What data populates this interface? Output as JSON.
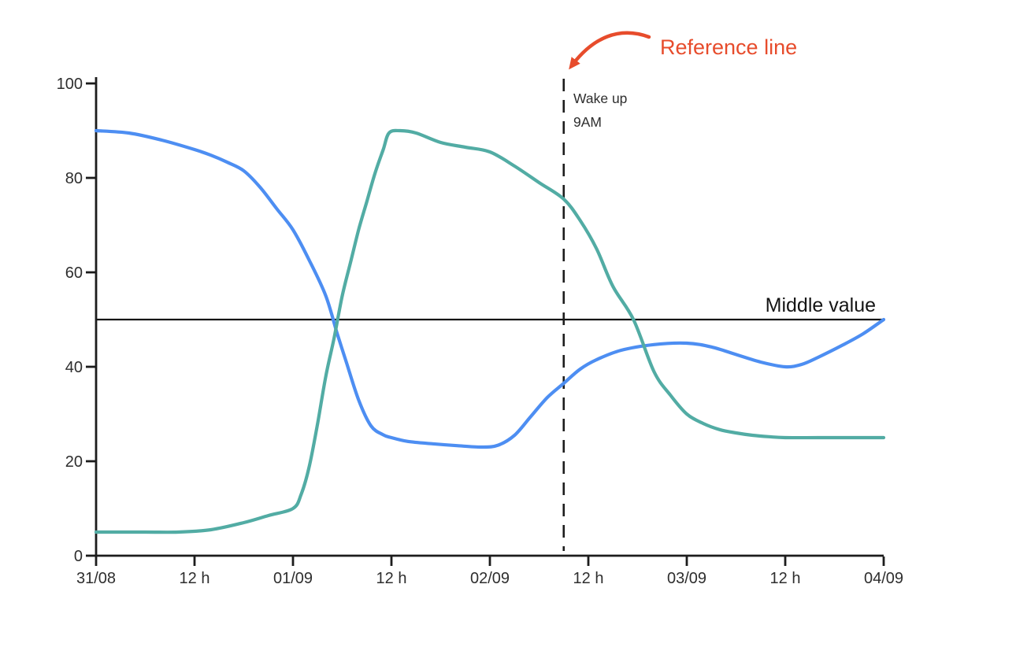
{
  "figure": {
    "background": "#ffffff"
  },
  "chart_data": {
    "type": "line",
    "title": "",
    "xlabel": "",
    "ylabel": "",
    "grid": false,
    "legend": false,
    "axis_color": "#1c1c1c",
    "tick_text_color": "#2e2e2e",
    "x_axis": {
      "unit": "datetime-hours-from-31/08-00:00",
      "range_hours": [
        0,
        96
      ],
      "tick_hours": [
        0,
        12,
        24,
        36,
        48,
        60,
        72,
        84,
        96
      ],
      "tick_labels": [
        "31/08",
        "12 h",
        "01/09",
        "12 h",
        "02/09",
        "12 h",
        "03/09",
        "12 h",
        "04/09"
      ]
    },
    "y_axis": {
      "range": [
        0,
        100
      ],
      "ticks": [
        0,
        20,
        40,
        60,
        80,
        100
      ]
    },
    "series": [
      {
        "name": "blue-series",
        "color": "#4D8EF2",
        "points_hour_value": [
          [
            0,
            90
          ],
          [
            4,
            89.5
          ],
          [
            8,
            88
          ],
          [
            12,
            86
          ],
          [
            14,
            84.8
          ],
          [
            16,
            83.3
          ],
          [
            18,
            81.5
          ],
          [
            20,
            78
          ],
          [
            22,
            73.5
          ],
          [
            24,
            69
          ],
          [
            26,
            62.5
          ],
          [
            28,
            55
          ],
          [
            29.4,
            47
          ],
          [
            30.5,
            41
          ],
          [
            32,
            33
          ],
          [
            33.5,
            27.5
          ],
          [
            35,
            25.6
          ],
          [
            36,
            25
          ],
          [
            38,
            24.2
          ],
          [
            41,
            23.7
          ],
          [
            44,
            23.3
          ],
          [
            47,
            23
          ],
          [
            49,
            23.4
          ],
          [
            51,
            25.5
          ],
          [
            53,
            29.5
          ],
          [
            55,
            33.5
          ],
          [
            57,
            36.5
          ],
          [
            59,
            39.5
          ],
          [
            61,
            41.5
          ],
          [
            64,
            43.5
          ],
          [
            68,
            44.7
          ],
          [
            72,
            45
          ],
          [
            75,
            44.2
          ],
          [
            78,
            42.6
          ],
          [
            81,
            41
          ],
          [
            84,
            40
          ],
          [
            86,
            40.5
          ],
          [
            88,
            42
          ],
          [
            91,
            44.6
          ],
          [
            93.5,
            47
          ],
          [
            96,
            50
          ]
        ]
      },
      {
        "name": "teal-series",
        "color": "#52ACA4",
        "points_hour_value": [
          [
            0,
            5
          ],
          [
            6,
            5
          ],
          [
            10,
            5
          ],
          [
            14,
            5.5
          ],
          [
            18,
            7
          ],
          [
            21,
            8.5
          ],
          [
            24,
            10
          ],
          [
            25,
            13
          ],
          [
            26,
            19
          ],
          [
            27,
            28
          ],
          [
            28,
            38
          ],
          [
            29,
            46
          ],
          [
            30,
            55
          ],
          [
            31,
            62
          ],
          [
            32,
            69
          ],
          [
            33,
            75
          ],
          [
            34,
            81
          ],
          [
            35,
            86
          ],
          [
            35.7,
            89.5
          ],
          [
            37,
            90
          ],
          [
            39,
            89.5
          ],
          [
            42,
            87.5
          ],
          [
            45,
            86.5
          ],
          [
            48,
            85.5
          ],
          [
            51,
            82.5
          ],
          [
            54,
            79
          ],
          [
            57,
            75.5
          ],
          [
            59,
            71
          ],
          [
            61,
            65
          ],
          [
            63,
            57
          ],
          [
            65.5,
            50
          ],
          [
            68,
            39
          ],
          [
            70,
            34
          ],
          [
            72,
            30
          ],
          [
            74,
            28
          ],
          [
            76,
            26.7
          ],
          [
            78,
            26
          ],
          [
            80,
            25.5
          ],
          [
            82,
            25.2
          ],
          [
            84,
            25
          ],
          [
            88,
            25
          ],
          [
            92,
            25
          ],
          [
            96,
            25
          ]
        ]
      }
    ],
    "middle_line": {
      "value": 50,
      "label": "Middle value",
      "color": "#151515"
    },
    "reference_line": {
      "hour": 57,
      "style": "dashed",
      "color": "#1c1c1c",
      "label_line1": "Wake up",
      "label_line2": "9AM"
    },
    "annotation": {
      "text": "Reference line",
      "color": "#E74C2C",
      "target": "reference-dashed-line"
    }
  }
}
